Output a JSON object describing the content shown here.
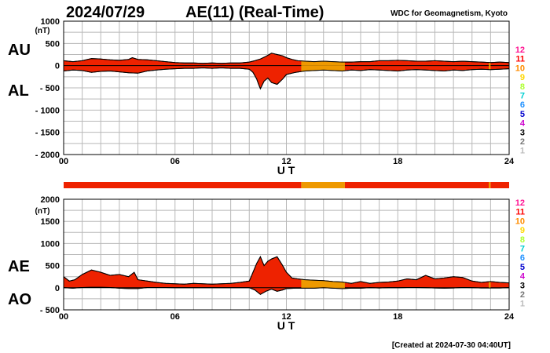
{
  "header": {
    "date": "2024/07/29",
    "title": "AE(11) (Real-Time)",
    "source": "WDC for Geomagnetism, Kyoto"
  },
  "footer": {
    "created": "[Created at 2024-07-30 04:40UT]"
  },
  "colors": {
    "fill_level_11": "#ee2200",
    "fill_level_10": "#ee9900",
    "trace": "#000000",
    "grid": "#b8b8b8"
  },
  "activity_levels": [
    {
      "label": "12",
      "color": "#ff1493"
    },
    {
      "label": "11",
      "color": "#ff0000"
    },
    {
      "label": "10",
      "color": "#ff8c00"
    },
    {
      "label": "9",
      "color": "#ffd700"
    },
    {
      "label": "8",
      "color": "#adff2f"
    },
    {
      "label": "7",
      "color": "#00ced1"
    },
    {
      "label": "6",
      "color": "#1e90ff"
    },
    {
      "label": "5",
      "color": "#0000cd"
    },
    {
      "label": "4",
      "color": "#cc00cc"
    },
    {
      "label": "3",
      "color": "#000000"
    },
    {
      "label": "2",
      "color": "#777777"
    },
    {
      "label": "1",
      "color": "#bbbbbb"
    }
  ],
  "activity_bar": [
    {
      "start": 0,
      "end": 12.8,
      "level": "11"
    },
    {
      "start": 12.8,
      "end": 15.15,
      "level": "10"
    },
    {
      "start": 15.15,
      "end": 22.9,
      "level": "11"
    },
    {
      "start": 22.9,
      "end": 23.0,
      "level": "10"
    },
    {
      "start": 23.0,
      "end": 24,
      "level": "11"
    }
  ],
  "chart_data": [
    {
      "type": "area",
      "upper_label": "AU",
      "lower_label": "AL",
      "unit": "(nT)",
      "xlabel": "U T",
      "xlim": [
        0,
        24
      ],
      "ylim": [
        -2000,
        1000
      ],
      "yticks": [
        {
          "value": 1000,
          "label": "1000"
        },
        {
          "value": 500,
          "label": "500"
        },
        {
          "value": 0,
          "label": "0"
        },
        {
          "value": -500,
          "label": "- 500"
        },
        {
          "value": -1000,
          "label": "- 1000"
        },
        {
          "value": -1500,
          "label": "- 1500"
        },
        {
          "value": -2000,
          "label": "- 2000"
        }
      ],
      "xticks": [
        {
          "value": 0,
          "label": "00"
        },
        {
          "value": 6,
          "label": "06"
        },
        {
          "value": 12,
          "label": "12"
        },
        {
          "value": 18,
          "label": "18"
        },
        {
          "value": 24,
          "label": "24"
        }
      ],
      "grid": true,
      "series": [
        {
          "name": "AU",
          "x": [
            0,
            0.5,
            1,
            1.5,
            2,
            2.5,
            3,
            3.5,
            3.7,
            4,
            4.5,
            5,
            5.5,
            6,
            6.5,
            7,
            7.5,
            8,
            8.5,
            9,
            9.5,
            10,
            10.3,
            10.6,
            10.9,
            11.2,
            11.5,
            11.8,
            12,
            12.3,
            12.6,
            13,
            13.5,
            14,
            14.5,
            15,
            15.5,
            16,
            16.5,
            17,
            17.5,
            18,
            18.5,
            19,
            19.5,
            20,
            20.5,
            21,
            21.5,
            22,
            22.5,
            23,
            23.5,
            24
          ],
          "values": [
            110,
            90,
            110,
            160,
            150,
            130,
            120,
            140,
            180,
            140,
            130,
            110,
            90,
            70,
            60,
            60,
            50,
            60,
            50,
            60,
            60,
            80,
            110,
            150,
            210,
            280,
            250,
            220,
            180,
            140,
            110,
            100,
            90,
            100,
            90,
            80,
            80,
            90,
            90,
            110,
            110,
            120,
            110,
            100,
            100,
            110,
            100,
            90,
            100,
            90,
            80,
            70,
            80,
            70
          ]
        },
        {
          "name": "AL",
          "x": [
            0,
            0.5,
            1,
            1.5,
            2,
            2.5,
            3,
            3.5,
            4,
            4.5,
            5,
            5.5,
            6,
            6.5,
            7,
            7.5,
            8,
            8.5,
            9,
            9.5,
            10,
            10.2,
            10.4,
            10.5,
            10.6,
            10.8,
            11,
            11.2,
            11.5,
            11.8,
            12,
            12.5,
            13,
            13.5,
            14,
            14.5,
            15,
            15.5,
            16,
            16.5,
            17,
            17.5,
            18,
            18.5,
            19,
            19.5,
            20,
            20.5,
            21,
            21.5,
            22,
            22.5,
            23,
            23.5,
            24
          ],
          "values": [
            -120,
            -100,
            -110,
            -150,
            -130,
            -120,
            -140,
            -160,
            -170,
            -120,
            -100,
            -80,
            -70,
            -60,
            -60,
            -50,
            -60,
            -50,
            -60,
            -60,
            -80,
            -150,
            -300,
            -420,
            -520,
            -350,
            -280,
            -380,
            -420,
            -300,
            -200,
            -150,
            -120,
            -110,
            -100,
            -110,
            -120,
            -100,
            -110,
            -90,
            -100,
            -110,
            -120,
            -100,
            -90,
            -100,
            -110,
            -120,
            -100,
            -110,
            -90,
            -80,
            -90,
            -80,
            -70
          ]
        }
      ]
    },
    {
      "type": "area",
      "upper_label": "AE",
      "lower_label": "AO",
      "unit": "(nT)",
      "xlabel": "U T",
      "xlim": [
        0,
        24
      ],
      "ylim": [
        -500,
        2000
      ],
      "yticks": [
        {
          "value": 2000,
          "label": "2000"
        },
        {
          "value": 1500,
          "label": "1500"
        },
        {
          "value": 1000,
          "label": "1000"
        },
        {
          "value": 500,
          "label": "500"
        },
        {
          "value": 0,
          "label": "0"
        },
        {
          "value": -500,
          "label": "- 500"
        }
      ],
      "xticks": [
        {
          "value": 0,
          "label": "00"
        },
        {
          "value": 6,
          "label": "06"
        },
        {
          "value": 12,
          "label": "12"
        },
        {
          "value": 18,
          "label": "18"
        },
        {
          "value": 24,
          "label": "24"
        }
      ],
      "grid": true,
      "series": [
        {
          "name": "AE",
          "x": [
            0,
            0.3,
            0.6,
            1,
            1.5,
            2,
            2.5,
            3,
            3.5,
            3.8,
            4,
            4.5,
            5,
            5.5,
            6,
            6.5,
            7,
            7.5,
            8,
            8.5,
            9,
            9.5,
            10,
            10.2,
            10.4,
            10.6,
            10.8,
            11,
            11.2,
            11.5,
            11.8,
            12,
            12.3,
            12.6,
            13,
            13.5,
            14,
            14.5,
            15,
            15.5,
            16,
            16.5,
            17,
            17.5,
            18,
            18.5,
            19,
            19.5,
            20,
            20.5,
            21,
            21.5,
            22,
            22.5,
            23,
            23.5,
            24
          ],
          "values": [
            250,
            150,
            180,
            300,
            400,
            350,
            280,
            300,
            250,
            350,
            180,
            150,
            120,
            100,
            90,
            80,
            100,
            90,
            80,
            90,
            100,
            120,
            150,
            350,
            550,
            700,
            500,
            600,
            650,
            700,
            500,
            350,
            220,
            200,
            180,
            170,
            160,
            140,
            130,
            100,
            140,
            100,
            120,
            130,
            150,
            200,
            180,
            280,
            200,
            220,
            250,
            230,
            150,
            120,
            140,
            120,
            110
          ]
        },
        {
          "name": "AO",
          "x": [
            0,
            0.5,
            1,
            1.5,
            2,
            2.5,
            3,
            3.5,
            4,
            4.5,
            5,
            5.5,
            6,
            6.5,
            7,
            7.5,
            8,
            8.5,
            9,
            9.5,
            10,
            10.3,
            10.6,
            10.9,
            11.2,
            11.5,
            11.8,
            12,
            12.5,
            13,
            13.5,
            14,
            14.5,
            15,
            15.5,
            16,
            16.5,
            17,
            17.5,
            18,
            18.5,
            19,
            19.5,
            20,
            20.5,
            21,
            21.5,
            22,
            22.5,
            23,
            23.5,
            24
          ],
          "values": [
            0,
            -10,
            5,
            10,
            10,
            5,
            -10,
            -20,
            -20,
            5,
            5,
            5,
            0,
            0,
            0,
            0,
            0,
            0,
            0,
            0,
            0,
            -50,
            -150,
            -80,
            -30,
            -80,
            -50,
            -20,
            -10,
            -10,
            -10,
            0,
            -10,
            -20,
            -10,
            -10,
            0,
            -5,
            0,
            0,
            5,
            5,
            0,
            -5,
            -10,
            -5,
            5,
            0,
            -5,
            -5,
            -5,
            0
          ]
        }
      ]
    }
  ]
}
